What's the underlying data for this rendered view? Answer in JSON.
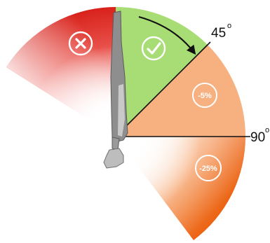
{
  "labels": {
    "angle_45": "45",
    "angle_90": "90",
    "degree_mark": "o"
  },
  "badges": {
    "minus_5": "-5%",
    "minus_25": "-25%"
  },
  "icons": {
    "forbidden": "x-icon",
    "allowed": "check-icon"
  },
  "colors": {
    "red_zone": "#dd2a22",
    "green_zone": "#a8dc74",
    "peach_zone": "#f7b080",
    "orange_zone": "#ef6a1a",
    "bone": "#8e8e8e",
    "bone_highlight": "#c9c9c9",
    "arrow": "#111111"
  }
}
